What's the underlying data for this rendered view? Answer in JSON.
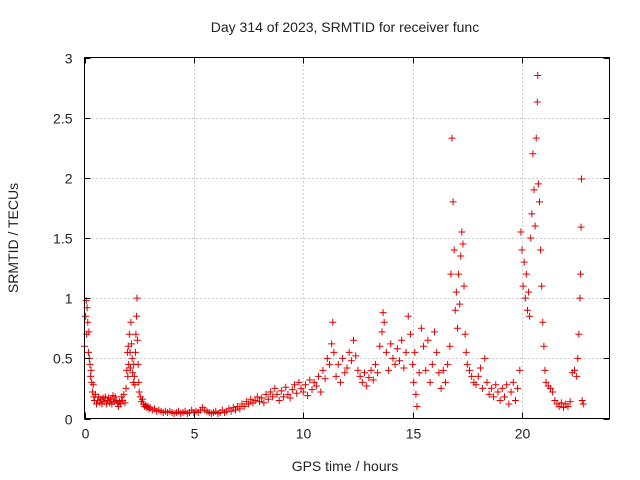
{
  "chart_data": {
    "type": "scatter",
    "title": "Day 314 of 2023, SRMTID for receiver func",
    "xlabel": "GPS time / hours",
    "ylabel": "SRMTID / TECUs",
    "xlim": [
      0,
      24
    ],
    "ylim": [
      0,
      3
    ],
    "xticks": [
      0,
      5,
      10,
      15,
      20
    ],
    "yticks": [
      0,
      0.5,
      1,
      1.5,
      2,
      2.5,
      3
    ],
    "xtick_labels": [
      "0",
      "5",
      "10",
      "15",
      "20"
    ],
    "ytick_labels": [
      "0",
      "0.5",
      "1",
      "1.5",
      "2",
      "2.5",
      "3"
    ],
    "grid": true,
    "marker": "+",
    "series": [
      {
        "name": "SRMTID",
        "color": "#e00000",
        "points": [
          [
            0.0,
            0.6
          ],
          [
            0.05,
            0.85
          ],
          [
            0.08,
            0.98
          ],
          [
            0.1,
            0.7
          ],
          [
            0.12,
            0.92
          ],
          [
            0.15,
            0.8
          ],
          [
            0.18,
            0.55
          ],
          [
            0.2,
            0.72
          ],
          [
            0.22,
            0.5
          ],
          [
            0.25,
            0.45
          ],
          [
            0.28,
            0.35
          ],
          [
            0.3,
            0.4
          ],
          [
            0.33,
            0.3
          ],
          [
            0.36,
            0.22
          ],
          [
            0.4,
            0.28
          ],
          [
            0.43,
            0.18
          ],
          [
            0.46,
            0.15
          ],
          [
            0.5,
            0.2
          ],
          [
            0.55,
            0.12
          ],
          [
            0.6,
            0.15
          ],
          [
            0.65,
            0.18
          ],
          [
            0.7,
            0.13
          ],
          [
            0.75,
            0.16
          ],
          [
            0.8,
            0.12
          ],
          [
            0.85,
            0.17
          ],
          [
            0.9,
            0.14
          ],
          [
            0.95,
            0.18
          ],
          [
            1.0,
            0.12
          ],
          [
            1.05,
            0.15
          ],
          [
            1.1,
            0.17
          ],
          [
            1.15,
            0.13
          ],
          [
            1.2,
            0.16
          ],
          [
            1.25,
            0.12
          ],
          [
            1.3,
            0.19
          ],
          [
            1.35,
            0.14
          ],
          [
            1.4,
            0.18
          ],
          [
            1.45,
            0.15
          ],
          [
            1.5,
            0.13
          ],
          [
            1.55,
            0.1
          ],
          [
            1.6,
            0.14
          ],
          [
            1.65,
            0.12
          ],
          [
            1.7,
            0.18
          ],
          [
            1.75,
            0.15
          ],
          [
            1.8,
            0.2
          ],
          [
            1.85,
            0.13
          ],
          [
            1.9,
            0.25
          ],
          [
            1.93,
            0.4
          ],
          [
            1.96,
            0.55
          ],
          [
            1.98,
            0.35
          ],
          [
            2.0,
            0.6
          ],
          [
            2.02,
            0.45
          ],
          [
            2.05,
            0.7
          ],
          [
            2.08,
            0.55
          ],
          [
            2.1,
            0.42
          ],
          [
            2.12,
            0.8
          ],
          [
            2.15,
            0.62
          ],
          [
            2.18,
            0.5
          ],
          [
            2.2,
            0.38
          ],
          [
            2.23,
            0.3
          ],
          [
            2.25,
            0.45
          ],
          [
            2.28,
            0.35
          ],
          [
            2.3,
            0.28
          ],
          [
            2.33,
            0.55
          ],
          [
            2.35,
            0.7
          ],
          [
            2.38,
            0.85
          ],
          [
            2.4,
            1.0
          ],
          [
            2.42,
            0.65
          ],
          [
            2.45,
            0.45
          ],
          [
            2.48,
            0.3
          ],
          [
            2.5,
            0.22
          ],
          [
            2.55,
            0.18
          ],
          [
            2.6,
            0.14
          ],
          [
            2.65,
            0.16
          ],
          [
            2.7,
            0.12
          ],
          [
            2.75,
            0.1
          ],
          [
            2.8,
            0.11
          ],
          [
            2.85,
            0.09
          ],
          [
            2.9,
            0.1
          ],
          [
            2.95,
            0.08
          ],
          [
            3.0,
            0.09
          ],
          [
            3.1,
            0.07
          ],
          [
            3.2,
            0.08
          ],
          [
            3.3,
            0.06
          ],
          [
            3.4,
            0.07
          ],
          [
            3.5,
            0.06
          ],
          [
            3.6,
            0.05
          ],
          [
            3.7,
            0.06
          ],
          [
            3.8,
            0.05
          ],
          [
            3.9,
            0.06
          ],
          [
            4.0,
            0.05
          ],
          [
            4.1,
            0.04
          ],
          [
            4.2,
            0.05
          ],
          [
            4.3,
            0.06
          ],
          [
            4.4,
            0.04
          ],
          [
            4.5,
            0.05
          ],
          [
            4.6,
            0.06
          ],
          [
            4.7,
            0.04
          ],
          [
            4.8,
            0.05
          ],
          [
            4.9,
            0.07
          ],
          [
            5.0,
            0.05
          ],
          [
            5.1,
            0.06
          ],
          [
            5.2,
            0.05
          ],
          [
            5.3,
            0.07
          ],
          [
            5.4,
            0.09
          ],
          [
            5.5,
            0.07
          ],
          [
            5.6,
            0.06
          ],
          [
            5.7,
            0.05
          ],
          [
            5.8,
            0.04
          ],
          [
            5.9,
            0.05
          ],
          [
            6.0,
            0.06
          ],
          [
            6.1,
            0.04
          ],
          [
            6.2,
            0.05
          ],
          [
            6.3,
            0.07
          ],
          [
            6.4,
            0.05
          ],
          [
            6.5,
            0.06
          ],
          [
            6.6,
            0.08
          ],
          [
            6.7,
            0.06
          ],
          [
            6.8,
            0.09
          ],
          [
            6.9,
            0.07
          ],
          [
            7.0,
            0.1
          ],
          [
            7.1,
            0.08
          ],
          [
            7.2,
            0.12
          ],
          [
            7.3,
            0.1
          ],
          [
            7.4,
            0.14
          ],
          [
            7.5,
            0.12
          ],
          [
            7.6,
            0.16
          ],
          [
            7.7,
            0.13
          ],
          [
            7.8,
            0.15
          ],
          [
            7.9,
            0.18
          ],
          [
            8.0,
            0.14
          ],
          [
            8.1,
            0.17
          ],
          [
            8.2,
            0.13
          ],
          [
            8.3,
            0.2
          ],
          [
            8.4,
            0.16
          ],
          [
            8.5,
            0.22
          ],
          [
            8.6,
            0.18
          ],
          [
            8.7,
            0.25
          ],
          [
            8.8,
            0.2
          ],
          [
            8.9,
            0.15
          ],
          [
            9.0,
            0.23
          ],
          [
            9.1,
            0.18
          ],
          [
            9.2,
            0.26
          ],
          [
            9.3,
            0.2
          ],
          [
            9.4,
            0.17
          ],
          [
            9.5,
            0.24
          ],
          [
            9.6,
            0.28
          ],
          [
            9.7,
            0.21
          ],
          [
            9.8,
            0.3
          ],
          [
            9.9,
            0.25
          ],
          [
            10.0,
            0.22
          ],
          [
            10.1,
            0.28
          ],
          [
            10.2,
            0.19
          ],
          [
            10.3,
            0.32
          ],
          [
            10.4,
            0.24
          ],
          [
            10.5,
            0.3
          ],
          [
            10.6,
            0.27
          ],
          [
            10.7,
            0.35
          ],
          [
            10.8,
            0.22
          ],
          [
            10.9,
            0.4
          ],
          [
            11.0,
            0.33
          ],
          [
            11.1,
            0.5
          ],
          [
            11.2,
            0.45
          ],
          [
            11.3,
            0.62
          ],
          [
            11.35,
            0.8
          ],
          [
            11.4,
            0.55
          ],
          [
            11.5,
            0.35
          ],
          [
            11.6,
            0.45
          ],
          [
            11.7,
            0.3
          ],
          [
            11.8,
            0.5
          ],
          [
            11.9,
            0.38
          ],
          [
            12.0,
            0.42
          ],
          [
            12.1,
            0.55
          ],
          [
            12.2,
            0.48
          ],
          [
            12.3,
            0.65
          ],
          [
            12.4,
            0.52
          ],
          [
            12.5,
            0.4
          ],
          [
            12.6,
            0.35
          ],
          [
            12.7,
            0.3
          ],
          [
            12.8,
            0.38
          ],
          [
            12.9,
            0.27
          ],
          [
            13.0,
            0.34
          ],
          [
            13.1,
            0.4
          ],
          [
            13.2,
            0.32
          ],
          [
            13.3,
            0.45
          ],
          [
            13.4,
            0.38
          ],
          [
            13.5,
            0.6
          ],
          [
            13.6,
            0.72
          ],
          [
            13.65,
            0.88
          ],
          [
            13.7,
            0.8
          ],
          [
            13.8,
            0.55
          ],
          [
            13.9,
            0.4
          ],
          [
            14.0,
            0.62
          ],
          [
            14.1,
            0.5
          ],
          [
            14.2,
            0.45
          ],
          [
            14.3,
            0.58
          ],
          [
            14.4,
            0.48
          ],
          [
            14.5,
            0.65
          ],
          [
            14.6,
            0.42
          ],
          [
            14.7,
            0.55
          ],
          [
            14.8,
            0.85
          ],
          [
            14.9,
            0.7
          ],
          [
            15.0,
            0.45
          ],
          [
            15.05,
            0.3
          ],
          [
            15.1,
            0.55
          ],
          [
            15.15,
            0.2
          ],
          [
            15.2,
            0.1
          ],
          [
            15.3,
            0.38
          ],
          [
            15.4,
            0.75
          ],
          [
            15.5,
            0.6
          ],
          [
            15.6,
            0.4
          ],
          [
            15.7,
            0.65
          ],
          [
            15.8,
            0.3
          ],
          [
            15.9,
            0.45
          ],
          [
            16.0,
            0.72
          ],
          [
            16.1,
            0.55
          ],
          [
            16.2,
            0.38
          ],
          [
            16.3,
            0.25
          ],
          [
            16.4,
            0.4
          ],
          [
            16.5,
            0.3
          ],
          [
            16.6,
            0.45
          ],
          [
            16.7,
            0.6
          ],
          [
            16.75,
            1.2
          ],
          [
            16.8,
            2.33
          ],
          [
            16.85,
            1.8
          ],
          [
            16.9,
            1.4
          ],
          [
            16.95,
            0.9
          ],
          [
            17.0,
            1.05
          ],
          [
            17.05,
            0.75
          ],
          [
            17.1,
            1.2
          ],
          [
            17.15,
            0.95
          ],
          [
            17.2,
            1.35
          ],
          [
            17.25,
            1.55
          ],
          [
            17.3,
            1.45
          ],
          [
            17.35,
            1.1
          ],
          [
            17.4,
            0.7
          ],
          [
            17.45,
            0.55
          ],
          [
            17.5,
            0.45
          ],
          [
            17.6,
            0.4
          ],
          [
            17.7,
            0.35
          ],
          [
            17.8,
            0.3
          ],
          [
            17.9,
            0.28
          ],
          [
            18.0,
            0.35
          ],
          [
            18.1,
            0.42
          ],
          [
            18.2,
            0.25
          ],
          [
            18.3,
            0.5
          ],
          [
            18.4,
            0.3
          ],
          [
            18.5,
            0.2
          ],
          [
            18.6,
            0.25
          ],
          [
            18.7,
            0.18
          ],
          [
            18.8,
            0.28
          ],
          [
            18.9,
            0.22
          ],
          [
            19.0,
            0.15
          ],
          [
            19.1,
            0.25
          ],
          [
            19.2,
            0.18
          ],
          [
            19.3,
            0.28
          ],
          [
            19.4,
            0.12
          ],
          [
            19.5,
            0.22
          ],
          [
            19.6,
            0.3
          ],
          [
            19.7,
            0.15
          ],
          [
            19.8,
            0.25
          ],
          [
            19.9,
            0.4
          ],
          [
            19.95,
            1.55
          ],
          [
            20.0,
            1.4
          ],
          [
            20.05,
            1.1
          ],
          [
            20.1,
            1.3
          ],
          [
            20.15,
            1.0
          ],
          [
            20.2,
            1.2
          ],
          [
            20.25,
            0.9
          ],
          [
            20.3,
            1.05
          ],
          [
            20.35,
            0.85
          ],
          [
            20.4,
            1.5
          ],
          [
            20.45,
            1.7
          ],
          [
            20.5,
            2.2
          ],
          [
            20.55,
            1.9
          ],
          [
            20.6,
            1.6
          ],
          [
            20.65,
            2.33
          ],
          [
            20.7,
            2.63
          ],
          [
            20.72,
            2.85
          ],
          [
            20.75,
            1.95
          ],
          [
            20.8,
            1.8
          ],
          [
            20.85,
            1.4
          ],
          [
            20.9,
            1.1
          ],
          [
            20.95,
            0.8
          ],
          [
            21.0,
            0.6
          ],
          [
            21.05,
            0.4
          ],
          [
            21.1,
            0.3
          ],
          [
            21.2,
            0.27
          ],
          [
            21.3,
            0.25
          ],
          [
            21.4,
            0.22
          ],
          [
            21.5,
            0.15
          ],
          [
            21.6,
            0.12
          ],
          [
            21.7,
            0.1
          ],
          [
            21.8,
            0.13
          ],
          [
            21.9,
            0.09
          ],
          [
            22.0,
            0.12
          ],
          [
            22.1,
            0.1
          ],
          [
            22.2,
            0.14
          ],
          [
            22.3,
            0.38
          ],
          [
            22.4,
            0.4
          ],
          [
            22.5,
            0.35
          ],
          [
            22.55,
            0.5
          ],
          [
            22.6,
            0.7
          ],
          [
            22.65,
            1.0
          ],
          [
            22.68,
            1.2
          ],
          [
            22.7,
            1.59
          ],
          [
            22.72,
            1.99
          ],
          [
            22.75,
            0.15
          ],
          [
            22.8,
            0.12
          ]
        ]
      }
    ]
  }
}
